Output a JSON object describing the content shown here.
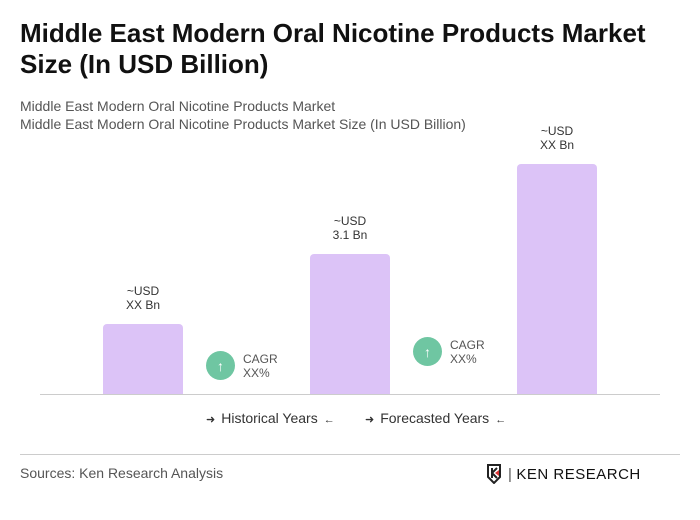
{
  "title": "Middle East Modern Oral Nicotine Products Market Size (In USD Billion)",
  "subtitle1": "Middle East Modern Oral Nicotine Products Market",
  "subtitle2": "Middle East Modern Oral Nicotine Products Market Size (In USD Billion)",
  "chart_data": {
    "type": "bar",
    "categories": [
      "",
      "",
      ""
    ],
    "values": [
      1.55,
      3.1,
      5.1
    ],
    "data_labels": [
      [
        "~USD",
        "XX Bn"
      ],
      [
        "~USD",
        "3.1 Bn"
      ],
      [
        "~USD",
        "XX Bn"
      ]
    ],
    "bar_color": "#dcc3f7",
    "cagr": [
      {
        "label": "CAGR",
        "value": "XX%"
      },
      {
        "label": "CAGR",
        "value": "XX%"
      }
    ],
    "cagr_color": "#6fc6a2",
    "legend": [
      "Historical Years",
      "Forecasted Years"
    ]
  },
  "footer": {
    "sources": "Sources: Ken Research Analysis",
    "logo": "KEN RESEARCH"
  }
}
